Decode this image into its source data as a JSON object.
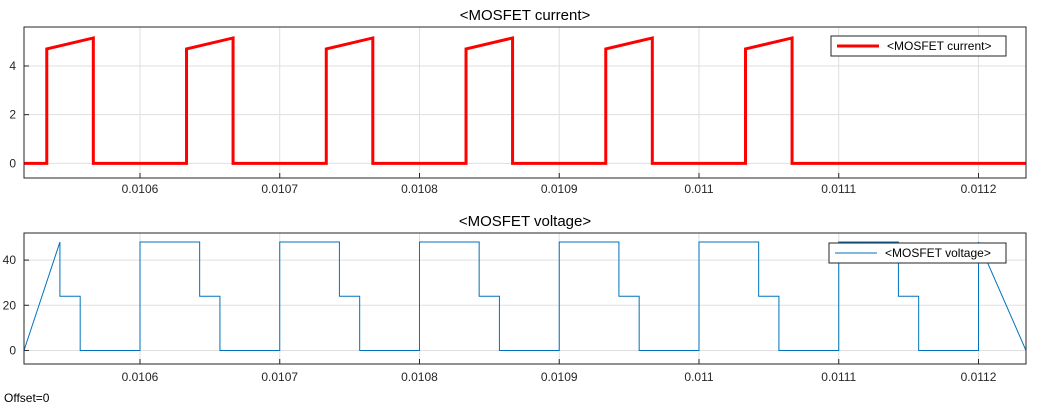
{
  "offset_label": "Offset=0",
  "chart_data": [
    {
      "type": "line",
      "title": "<MOSFET current>",
      "xlabel": "",
      "ylabel": "",
      "xlim": [
        0.010517,
        0.011234
      ],
      "ylim": [
        -0.6,
        5.6
      ],
      "x_ticks": [
        0.0106,
        0.0107,
        0.0108,
        0.0109,
        0.011,
        0.0111,
        0.0112
      ],
      "x_tick_labels": [
        "0.0106",
        "0.0107",
        "0.0108",
        "0.0109",
        "0.011",
        "0.0111",
        "0.0112"
      ],
      "y_ticks": [
        0,
        2,
        4
      ],
      "y_tick_labels": [
        "0",
        "2",
        "4"
      ],
      "grid": true,
      "legend": "top-right",
      "series": [
        {
          "name": "<MOSFET current>",
          "color": "#ff0000",
          "line_width": 3,
          "period": 0.0001,
          "on_start_phase": 3.33e-05,
          "on_duration": 3.33e-05,
          "current_start": 4.7,
          "current_end": 5.15,
          "cycles_end": 0.01108
        }
      ]
    },
    {
      "type": "line",
      "title": "<MOSFET voltage>",
      "xlabel": "",
      "ylabel": "",
      "xlim": [
        0.010517,
        0.011234
      ],
      "ylim": [
        -6,
        52
      ],
      "x_ticks": [
        0.0106,
        0.0107,
        0.0108,
        0.0109,
        0.011,
        0.0111,
        0.0112
      ],
      "x_tick_labels": [
        "0.0106",
        "0.0107",
        "0.0108",
        "0.0109",
        "0.011",
        "0.0111",
        "0.0112"
      ],
      "y_ticks": [
        0,
        20,
        40
      ],
      "y_tick_labels": [
        "0",
        "20",
        "40"
      ],
      "grid": true,
      "legend": "top-right",
      "series": [
        {
          "name": "<MOSFET voltage>",
          "color": "#0072bd",
          "line_width": 1,
          "period": 0.0001,
          "high": 48,
          "mid": 24,
          "low": 0,
          "high_duration": 4.27e-05,
          "mid_duration": 1.45e-05
        }
      ]
    }
  ]
}
